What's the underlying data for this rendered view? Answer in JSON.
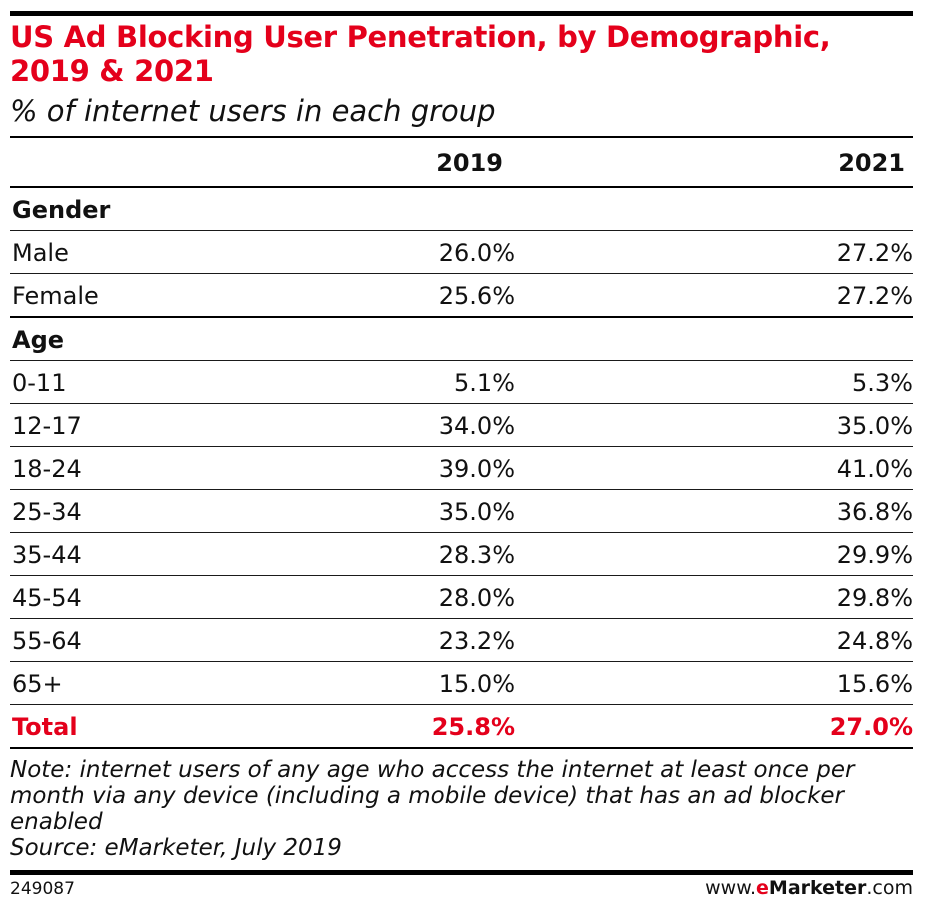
{
  "title": "US Ad Blocking User Penetration, by Demographic, 2019 & 2021",
  "subtitle": "% of internet users in each group",
  "chart_data": {
    "type": "table",
    "columns": [
      "2019",
      "2021"
    ],
    "groups": [
      {
        "name": "Gender",
        "rows": [
          {
            "label": "Male",
            "values": [
              "26.0%",
              "27.2%"
            ]
          },
          {
            "label": "Female",
            "values": [
              "25.6%",
              "27.2%"
            ]
          }
        ]
      },
      {
        "name": "Age",
        "rows": [
          {
            "label": "0-11",
            "values": [
              "5.1%",
              "5.3%"
            ]
          },
          {
            "label": "12-17",
            "values": [
              "34.0%",
              "35.0%"
            ]
          },
          {
            "label": "18-24",
            "values": [
              "39.0%",
              "41.0%"
            ]
          },
          {
            "label": "25-34",
            "values": [
              "35.0%",
              "36.8%"
            ]
          },
          {
            "label": "35-44",
            "values": [
              "28.3%",
              "29.9%"
            ]
          },
          {
            "label": "45-54",
            "values": [
              "28.0%",
              "29.8%"
            ]
          },
          {
            "label": "55-64",
            "values": [
              "23.2%",
              "24.8%"
            ]
          },
          {
            "label": "65+",
            "values": [
              "15.0%",
              "15.6%"
            ]
          }
        ]
      }
    ],
    "total": {
      "label": "Total",
      "values": [
        "25.8%",
        "27.0%"
      ]
    }
  },
  "notes": {
    "note": "Note: internet users of any age who access the internet at least once per month via any device (including a mobile device) that has an ad blocker enabled",
    "source": "Source: eMarketer, July 2019"
  },
  "footer": {
    "chart_id": "249087",
    "brand_prefix": "www.",
    "brand_name": "eMarketer",
    "brand_suffix": ".com"
  },
  "colors": {
    "accent": "#e4001b",
    "text": "#111111",
    "rule": "#000000"
  }
}
